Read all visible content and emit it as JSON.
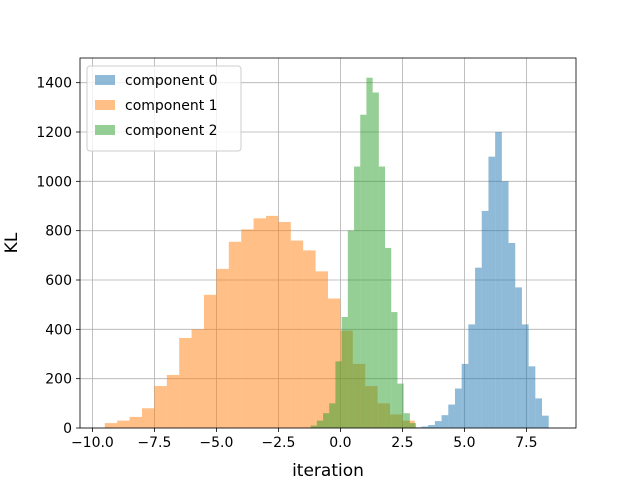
{
  "chart_data": {
    "type": "bar",
    "subtype": "overlapping-histogram",
    "xlabel": "iteration",
    "ylabel": "KL",
    "xlim": [
      -10.5,
      9.5
    ],
    "ylim": [
      0,
      1500
    ],
    "grid": true,
    "legend_position": "top-left",
    "bar_alpha": 0.5,
    "xticks": [
      -10.0,
      -7.5,
      -5.0,
      -2.5,
      0.0,
      2.5,
      5.0,
      7.5
    ],
    "xtick_labels": [
      "−10.0",
      "−7.5",
      "−5.0",
      "−2.5",
      "0.0",
      "2.5",
      "5.0",
      "7.5"
    ],
    "yticks": [
      0,
      200,
      400,
      600,
      800,
      1000,
      1200,
      1400
    ],
    "ytick_labels": [
      "0",
      "200",
      "400",
      "600",
      "800",
      "1000",
      "1200",
      "1400"
    ],
    "series": [
      {
        "name": "component 0",
        "color": "#1f77b4",
        "bin_edges": [
          3.0,
          3.27,
          3.54,
          3.81,
          4.08,
          4.35,
          4.62,
          4.89,
          5.16,
          5.43,
          5.7,
          5.97,
          6.24,
          6.51,
          6.78,
          7.05,
          7.32,
          7.59,
          7.86,
          8.13,
          8.4
        ],
        "counts": [
          3,
          6,
          12,
          28,
          52,
          95,
          160,
          260,
          420,
          650,
          880,
          1100,
          1200,
          1000,
          750,
          570,
          420,
          250,
          120,
          50
        ]
      },
      {
        "name": "component 1",
        "color": "#ff7f0e",
        "bin_edges": [
          -9.5,
          -9.0,
          -8.5,
          -8.0,
          -7.5,
          -7.0,
          -6.5,
          -6.0,
          -5.5,
          -5.0,
          -4.5,
          -4.0,
          -3.5,
          -3.0,
          -2.5,
          -2.0,
          -1.5,
          -1.0,
          -0.5,
          0.0,
          0.5,
          1.0,
          1.5,
          2.0,
          2.5,
          3.0
        ],
        "counts": [
          20,
          30,
          45,
          80,
          170,
          215,
          365,
          400,
          540,
          645,
          755,
          805,
          850,
          860,
          835,
          760,
          720,
          635,
          525,
          395,
          260,
          170,
          100,
          55,
          30
        ]
      },
      {
        "name": "component 2",
        "color": "#2ca02c",
        "bin_edges": [
          -1.2,
          -0.95,
          -0.7,
          -0.45,
          -0.2,
          0.05,
          0.3,
          0.55,
          0.8,
          1.05,
          1.3,
          1.55,
          1.8,
          2.05,
          2.3,
          2.55,
          2.8,
          3.05
        ],
        "counts": [
          10,
          30,
          60,
          100,
          270,
          450,
          800,
          1060,
          1270,
          1420,
          1360,
          1060,
          730,
          470,
          180,
          60,
          20
        ]
      }
    ]
  }
}
